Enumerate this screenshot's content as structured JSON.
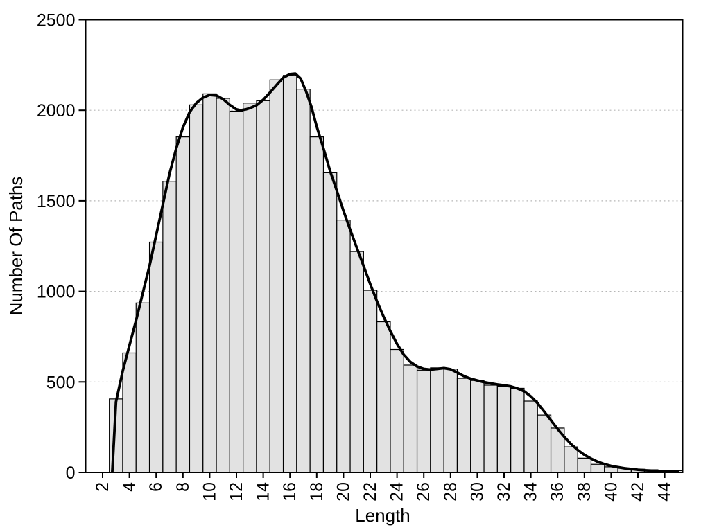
{
  "chart_data": {
    "type": "bar",
    "subtype": "histogram-with-smooth-curve",
    "title": "",
    "xlabel": "Length",
    "ylabel": "Number Of Paths",
    "x_tick_labels": [
      2,
      4,
      6,
      8,
      10,
      12,
      14,
      16,
      18,
      20,
      22,
      24,
      26,
      28,
      30,
      32,
      34,
      36,
      38,
      40,
      42,
      44
    ],
    "y_tick_labels": [
      0,
      500,
      1000,
      1500,
      2000,
      2500
    ],
    "xlim": [
      0.73,
      45.35
    ],
    "ylim": [
      0,
      2500
    ],
    "grid": "horizontal dotted lines at 500, 1000, 1500, 2000",
    "legend_position": "none",
    "bin_width": 1,
    "categories": [
      3,
      4,
      5,
      6,
      7,
      8,
      9,
      10,
      11,
      12,
      13,
      14,
      15,
      16,
      17,
      18,
      19,
      20,
      21,
      22,
      23,
      24,
      25,
      26,
      27,
      28,
      29,
      30,
      31,
      32,
      33,
      34,
      35,
      36,
      37,
      38,
      39,
      40,
      41,
      42,
      43,
      44,
      45
    ],
    "values": [
      406,
      660,
      936,
      1272,
      1608,
      1853,
      2030,
      2091,
      2066,
      1995,
      2040,
      2053,
      2168,
      2193,
      2117,
      1853,
      1655,
      1394,
      1220,
      1006,
      832,
      679,
      593,
      565,
      578,
      571,
      520,
      508,
      482,
      476,
      465,
      394,
      317,
      245,
      141,
      79,
      45,
      31,
      23,
      18,
      15,
      13,
      10
    ],
    "overlay_curve": {
      "name": "smooth-fit-curve",
      "points": [
        [
          2.72,
          0
        ],
        [
          3,
          390
        ],
        [
          3.5,
          560
        ],
        [
          4,
          700
        ],
        [
          4.5,
          840
        ],
        [
          5,
          990
        ],
        [
          5.5,
          1140
        ],
        [
          6,
          1310
        ],
        [
          6.5,
          1480
        ],
        [
          7,
          1650
        ],
        [
          7.5,
          1790
        ],
        [
          8,
          1905
        ],
        [
          8.5,
          1990
        ],
        [
          9,
          2040
        ],
        [
          9.5,
          2070
        ],
        [
          10,
          2085
        ],
        [
          10.5,
          2082
        ],
        [
          11,
          2062
        ],
        [
          11.5,
          2030
        ],
        [
          12,
          2005
        ],
        [
          12.3,
          2000
        ],
        [
          12.7,
          2005
        ],
        [
          13,
          2012
        ],
        [
          13.5,
          2028
        ],
        [
          14,
          2058
        ],
        [
          14.5,
          2098
        ],
        [
          15,
          2140
        ],
        [
          15.5,
          2180
        ],
        [
          16,
          2200
        ],
        [
          16.4,
          2203
        ],
        [
          16.8,
          2175
        ],
        [
          17.2,
          2105
        ],
        [
          17.6,
          2020
        ],
        [
          18,
          1910
        ],
        [
          18.5,
          1790
        ],
        [
          19,
          1665
        ],
        [
          19.5,
          1555
        ],
        [
          20,
          1445
        ],
        [
          20.5,
          1340
        ],
        [
          21,
          1240
        ],
        [
          21.5,
          1140
        ],
        [
          22,
          1040
        ],
        [
          22.5,
          945
        ],
        [
          23,
          860
        ],
        [
          23.5,
          780
        ],
        [
          24,
          710
        ],
        [
          24.5,
          650
        ],
        [
          25,
          610
        ],
        [
          25.5,
          585
        ],
        [
          26,
          572
        ],
        [
          26.5,
          568
        ],
        [
          27,
          572
        ],
        [
          27.5,
          576
        ],
        [
          28,
          570
        ],
        [
          28.5,
          552
        ],
        [
          29,
          532
        ],
        [
          29.5,
          518
        ],
        [
          30,
          508
        ],
        [
          30.5,
          499
        ],
        [
          31,
          492
        ],
        [
          31.5,
          486
        ],
        [
          32,
          481
        ],
        [
          32.5,
          475
        ],
        [
          33,
          464
        ],
        [
          33.5,
          448
        ],
        [
          34,
          420
        ],
        [
          34.5,
          382
        ],
        [
          35,
          336
        ],
        [
          35.5,
          288
        ],
        [
          36,
          240
        ],
        [
          36.5,
          196
        ],
        [
          37,
          157
        ],
        [
          37.5,
          124
        ],
        [
          38,
          97
        ],
        [
          38.5,
          76
        ],
        [
          39,
          59
        ],
        [
          39.5,
          46
        ],
        [
          40,
          36
        ],
        [
          40.5,
          29
        ],
        [
          41,
          23
        ],
        [
          41.5,
          19
        ],
        [
          42,
          15
        ],
        [
          42.5,
          12
        ],
        [
          43,
          10
        ],
        [
          43.5,
          8
        ],
        [
          44,
          7
        ],
        [
          44.5,
          6
        ],
        [
          45,
          5
        ]
      ]
    },
    "colors": {
      "bar_fill": "#e2e2e2",
      "bar_border": "#000000",
      "curve": "#000000",
      "grid": "#b5b5b5",
      "frame": "#000000",
      "text": "#000000",
      "background": "#ffffff"
    }
  }
}
